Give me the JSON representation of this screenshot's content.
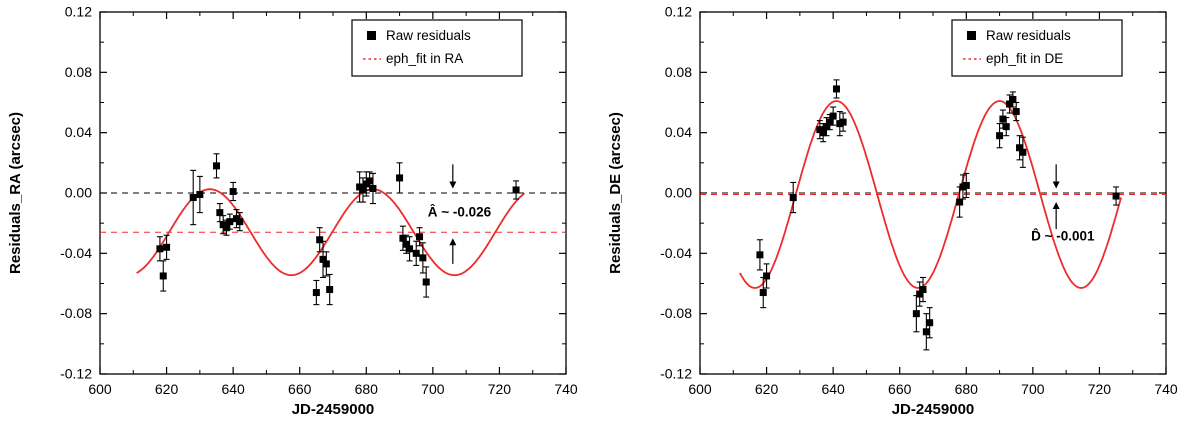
{
  "colors": {
    "fit_red": "#ee2b2b",
    "marker_black": "#000000",
    "axis_black": "#000000"
  },
  "chart_data": [
    {
      "type": "scatter",
      "title": "",
      "xlabel": "JD-2459000",
      "ylabel": "Residuals_RA (arcsec)",
      "xlim": [
        600,
        740
      ],
      "ylim": [
        -0.12,
        0.12
      ],
      "xticks": [
        600,
        620,
        640,
        660,
        680,
        700,
        720,
        740
      ],
      "yticks": [
        -0.12,
        -0.08,
        -0.04,
        0.0,
        0.04,
        0.08,
        0.12
      ],
      "x_minor_step": 10,
      "y_minor_step": 0.02,
      "grid": false,
      "legend": {
        "position": "top-right",
        "entries": [
          {
            "marker": "black-square",
            "label": "Raw residuals"
          },
          {
            "marker": "red-dash",
            "label": "eph_fit in RA"
          }
        ]
      },
      "reference_lines": [
        {
          "y": 0.0,
          "color": "black",
          "style": "dashed",
          "name": "zero-line"
        },
        {
          "y": -0.026,
          "color": "red",
          "style": "dashed",
          "name": "mean-offset-line"
        }
      ],
      "fit_curve": {
        "name": "eph_fit in RA",
        "model": "mean + amplitude*cos(2*pi*(x-peak_x)/period)",
        "mean": -0.026,
        "amplitude": 0.0285,
        "period": 49,
        "peak_x": 633,
        "x_range": [
          611,
          727.5
        ]
      },
      "annotation": {
        "text": "Â ~ -0.026",
        "x": 708,
        "y": -0.013,
        "arrows": [
          {
            "x": 706,
            "y_from": 0.019,
            "y_to": 0.003
          },
          {
            "x": 706,
            "y_from": -0.047,
            "y_to": -0.03
          }
        ]
      },
      "series": [
        {
          "name": "Raw residuals",
          "points": [
            [
              618,
              -0.037,
              0.008
            ],
            [
              619,
              -0.055,
              0.01
            ],
            [
              620,
              -0.036,
              0.008
            ],
            [
              628,
              -0.003,
              0.018
            ],
            [
              630,
              -0.001,
              0.012
            ],
            [
              635,
              0.018,
              0.008
            ],
            [
              636,
              -0.013,
              0.006
            ],
            [
              637,
              -0.021,
              0.006
            ],
            [
              638,
              -0.023,
              0.005
            ],
            [
              639,
              -0.019,
              0.005
            ],
            [
              640,
              0.001,
              0.006
            ],
            [
              641,
              -0.017,
              0.006
            ],
            [
              642,
              -0.019,
              0.006
            ],
            [
              665,
              -0.066,
              0.008
            ],
            [
              666,
              -0.031,
              0.008
            ],
            [
              667,
              -0.044,
              0.012
            ],
            [
              668,
              -0.047,
              0.008
            ],
            [
              669,
              -0.064,
              0.01
            ],
            [
              678,
              0.004,
              0.01
            ],
            [
              679,
              0.002,
              0.008
            ],
            [
              680,
              0.006,
              0.008
            ],
            [
              681,
              0.008,
              0.006
            ],
            [
              682,
              0.003,
              0.01
            ],
            [
              690,
              0.01,
              0.01
            ],
            [
              691,
              -0.03,
              0.008
            ],
            [
              692,
              -0.034,
              0.006
            ],
            [
              693,
              -0.037,
              0.008
            ],
            [
              695,
              -0.04,
              0.008
            ],
            [
              696,
              -0.029,
              0.006
            ],
            [
              697,
              -0.043,
              0.01
            ],
            [
              698,
              -0.059,
              0.01
            ],
            [
              725,
              0.002,
              0.006
            ]
          ]
        }
      ]
    },
    {
      "type": "scatter",
      "title": "",
      "xlabel": "JD-2459000",
      "ylabel": "Residuals_DE (arcsec)",
      "xlim": [
        600,
        740
      ],
      "ylim": [
        -0.12,
        0.12
      ],
      "xticks": [
        600,
        620,
        640,
        660,
        680,
        700,
        720,
        740
      ],
      "yticks": [
        -0.12,
        -0.08,
        -0.04,
        0.0,
        0.04,
        0.08,
        0.12
      ],
      "x_minor_step": 10,
      "y_minor_step": 0.02,
      "grid": false,
      "legend": {
        "position": "top-right",
        "entries": [
          {
            "marker": "black-square",
            "label": "Raw residuals"
          },
          {
            "marker": "red-dash",
            "label": "eph_fit in DE"
          }
        ]
      },
      "reference_lines": [
        {
          "y": 0.0,
          "color": "black",
          "style": "dashed",
          "name": "zero-line"
        },
        {
          "y": -0.001,
          "color": "red",
          "style": "dashed",
          "name": "mean-offset-line"
        }
      ],
      "fit_curve": {
        "name": "eph_fit in DE",
        "model": "mean + amplitude*cos(2*pi*(x-peak_x)/period)",
        "mean": -0.001,
        "amplitude": 0.062,
        "period": 49,
        "peak_x": 690,
        "x_range": [
          612,
          726.5
        ]
      },
      "annotation": {
        "text": "D̂ ~ -0.001",
        "x": 709,
        "y": -0.029,
        "arrows": [
          {
            "x": 707,
            "y_from": 0.019,
            "y_to": 0.003
          },
          {
            "x": 707,
            "y_from": -0.024,
            "y_to": -0.006
          }
        ]
      },
      "series": [
        {
          "name": "Raw residuals",
          "points": [
            [
              618,
              -0.041,
              0.01
            ],
            [
              619,
              -0.066,
              0.01
            ],
            [
              620,
              -0.055,
              0.008
            ],
            [
              628,
              -0.003,
              0.01
            ],
            [
              636,
              0.042,
              0.006
            ],
            [
              637,
              0.04,
              0.006
            ],
            [
              638,
              0.044,
              0.006
            ],
            [
              639,
              0.047,
              0.005
            ],
            [
              640,
              0.051,
              0.006
            ],
            [
              641,
              0.069,
              0.006
            ],
            [
              642,
              0.046,
              0.008
            ],
            [
              643,
              0.047,
              0.006
            ],
            [
              665,
              -0.08,
              0.012
            ],
            [
              666,
              -0.067,
              0.008
            ],
            [
              667,
              -0.064,
              0.008
            ],
            [
              668,
              -0.092,
              0.012
            ],
            [
              669,
              -0.086,
              0.01
            ],
            [
              678,
              -0.006,
              0.01
            ],
            [
              679,
              0.004,
              0.008
            ],
            [
              680,
              0.005,
              0.008
            ],
            [
              690,
              0.038,
              0.008
            ],
            [
              691,
              0.049,
              0.006
            ],
            [
              692,
              0.044,
              0.006
            ],
            [
              693,
              0.059,
              0.006
            ],
            [
              694,
              0.062,
              0.005
            ],
            [
              695,
              0.054,
              0.006
            ],
            [
              696,
              0.03,
              0.008
            ],
            [
              697,
              0.027,
              0.01
            ],
            [
              725,
              -0.002,
              0.006
            ]
          ]
        }
      ]
    }
  ]
}
